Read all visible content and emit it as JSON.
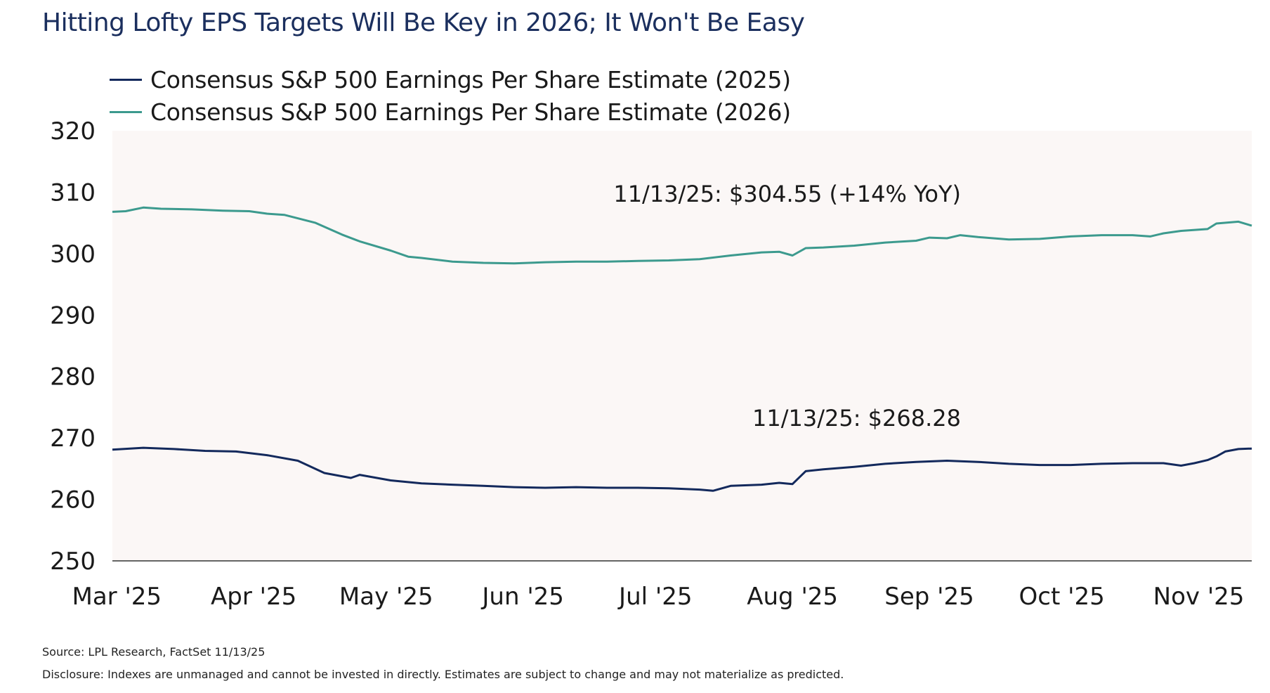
{
  "chart_data": {
    "type": "line",
    "title": "Hitting Lofty EPS Targets Will Be Key in 2026; It Won't Be Easy",
    "ylim": [
      250,
      320
    ],
    "yticks": [
      320,
      310,
      300,
      290,
      280,
      270,
      260,
      250
    ],
    "xlim": [
      "2025-02-28",
      "2025-11-13"
    ],
    "xticks": [
      {
        "label": "Mar '25",
        "date": "2025-03-01"
      },
      {
        "label": "Apr '25",
        "date": "2025-04-01"
      },
      {
        "label": "May '25",
        "date": "2025-05-01"
      },
      {
        "label": "Jun '25",
        "date": "2025-06-01"
      },
      {
        "label": "Jul '25",
        "date": "2025-07-01"
      },
      {
        "label": "Aug '25",
        "date": "2025-08-01"
      },
      {
        "label": "Sep '25",
        "date": "2025-09-01"
      },
      {
        "label": "Oct '25",
        "date": "2025-10-01"
      },
      {
        "label": "Nov '25",
        "date": "2025-11-01"
      }
    ],
    "grid": false,
    "legend_position": "top-left",
    "plot_background": "#fbf7f6",
    "series": [
      {
        "name": "Consensus S&P 500 Earnings Per Share Estimate (2025)",
        "color": "#13295c",
        "points": [
          [
            "2025-02-28",
            268.1
          ],
          [
            "2025-03-07",
            268.4
          ],
          [
            "2025-03-14",
            268.2
          ],
          [
            "2025-03-21",
            267.9
          ],
          [
            "2025-03-28",
            267.8
          ],
          [
            "2025-04-04",
            267.2
          ],
          [
            "2025-04-11",
            266.3
          ],
          [
            "2025-04-17",
            264.3
          ],
          [
            "2025-04-23",
            263.5
          ],
          [
            "2025-04-25",
            264.0
          ],
          [
            "2025-05-02",
            263.1
          ],
          [
            "2025-05-09",
            262.6
          ],
          [
            "2025-05-16",
            262.4
          ],
          [
            "2025-05-23",
            262.2
          ],
          [
            "2025-05-30",
            262.0
          ],
          [
            "2025-06-06",
            261.9
          ],
          [
            "2025-06-13",
            262.0
          ],
          [
            "2025-06-20",
            261.9
          ],
          [
            "2025-06-27",
            261.9
          ],
          [
            "2025-07-04",
            261.8
          ],
          [
            "2025-07-11",
            261.6
          ],
          [
            "2025-07-14",
            261.4
          ],
          [
            "2025-07-18",
            262.2
          ],
          [
            "2025-07-25",
            262.4
          ],
          [
            "2025-07-29",
            262.7
          ],
          [
            "2025-08-01",
            262.5
          ],
          [
            "2025-08-04",
            264.6
          ],
          [
            "2025-08-08",
            264.9
          ],
          [
            "2025-08-15",
            265.3
          ],
          [
            "2025-08-22",
            265.8
          ],
          [
            "2025-08-29",
            266.1
          ],
          [
            "2025-09-05",
            266.3
          ],
          [
            "2025-09-12",
            266.1
          ],
          [
            "2025-09-19",
            265.8
          ],
          [
            "2025-09-26",
            265.6
          ],
          [
            "2025-10-03",
            265.6
          ],
          [
            "2025-10-10",
            265.8
          ],
          [
            "2025-10-17",
            265.9
          ],
          [
            "2025-10-24",
            265.9
          ],
          [
            "2025-10-28",
            265.5
          ],
          [
            "2025-10-31",
            265.9
          ],
          [
            "2025-11-03",
            266.4
          ],
          [
            "2025-11-05",
            267.0
          ],
          [
            "2025-11-07",
            267.8
          ],
          [
            "2025-11-10",
            268.2
          ],
          [
            "2025-11-13",
            268.28
          ]
        ]
      },
      {
        "name": "Consensus S&P 500 Earnings Per Share Estimate (2026)",
        "color": "#3c9a8e",
        "points": [
          [
            "2025-02-28",
            306.8
          ],
          [
            "2025-03-03",
            306.9
          ],
          [
            "2025-03-07",
            307.5
          ],
          [
            "2025-03-11",
            307.3
          ],
          [
            "2025-03-18",
            307.2
          ],
          [
            "2025-03-25",
            307.0
          ],
          [
            "2025-03-31",
            306.9
          ],
          [
            "2025-04-04",
            306.5
          ],
          [
            "2025-04-08",
            306.3
          ],
          [
            "2025-04-15",
            305.0
          ],
          [
            "2025-04-21",
            303.1
          ],
          [
            "2025-04-25",
            302.0
          ],
          [
            "2025-05-02",
            300.5
          ],
          [
            "2025-05-06",
            299.5
          ],
          [
            "2025-05-09",
            299.3
          ],
          [
            "2025-05-16",
            298.7
          ],
          [
            "2025-05-23",
            298.5
          ],
          [
            "2025-05-30",
            298.4
          ],
          [
            "2025-06-06",
            298.6
          ],
          [
            "2025-06-13",
            298.7
          ],
          [
            "2025-06-20",
            298.7
          ],
          [
            "2025-06-27",
            298.8
          ],
          [
            "2025-07-04",
            298.9
          ],
          [
            "2025-07-11",
            299.1
          ],
          [
            "2025-07-18",
            299.7
          ],
          [
            "2025-07-25",
            300.2
          ],
          [
            "2025-07-29",
            300.3
          ],
          [
            "2025-08-01",
            299.7
          ],
          [
            "2025-08-04",
            300.9
          ],
          [
            "2025-08-08",
            301.0
          ],
          [
            "2025-08-15",
            301.3
          ],
          [
            "2025-08-22",
            301.8
          ],
          [
            "2025-08-29",
            302.1
          ],
          [
            "2025-09-01",
            302.6
          ],
          [
            "2025-09-05",
            302.5
          ],
          [
            "2025-09-08",
            303.0
          ],
          [
            "2025-09-12",
            302.7
          ],
          [
            "2025-09-19",
            302.3
          ],
          [
            "2025-09-26",
            302.4
          ],
          [
            "2025-10-03",
            302.8
          ],
          [
            "2025-10-10",
            303.0
          ],
          [
            "2025-10-17",
            303.0
          ],
          [
            "2025-10-21",
            302.8
          ],
          [
            "2025-10-24",
            303.3
          ],
          [
            "2025-10-28",
            303.7
          ],
          [
            "2025-11-03",
            304.0
          ],
          [
            "2025-11-05",
            304.9
          ],
          [
            "2025-11-10",
            305.2
          ],
          [
            "2025-11-13",
            304.55
          ]
        ]
      }
    ],
    "annotations": [
      {
        "text": "11/13/25: $304.55 (+14% YoY)",
        "date": "2025-11-13",
        "value": 304.55
      },
      {
        "text": "11/13/25: $268.28",
        "date": "2025-11-13",
        "value": 268.28
      }
    ]
  },
  "footer": {
    "source": "Source: LPL Research, FactSet 11/13/25",
    "disclosure": "Disclosure: Indexes are unmanaged and cannot be invested in directly. Estimates are subject to change and may not materialize as predicted."
  }
}
